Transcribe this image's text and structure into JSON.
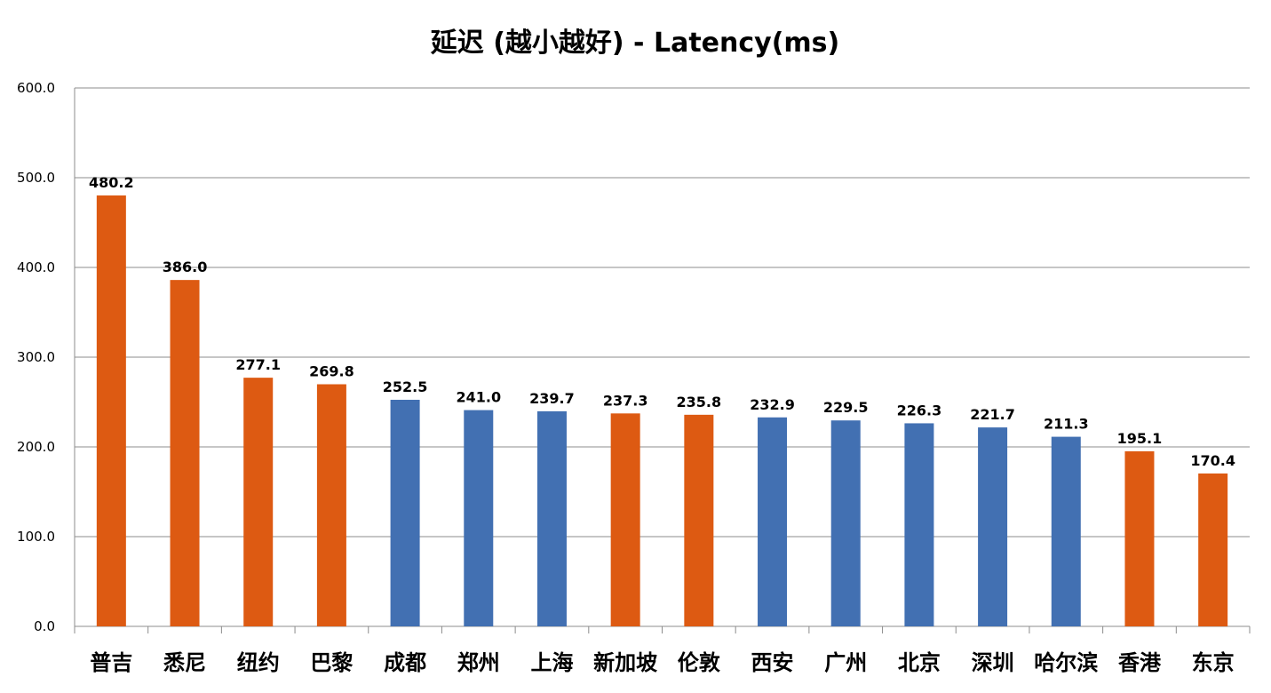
{
  "chart_data": {
    "type": "bar",
    "title": "延迟 (越小越好) -  Latency(ms)",
    "xlabel": "",
    "ylabel": "",
    "ylim": [
      0,
      600
    ],
    "yticks": [
      "0.0",
      "100.0",
      "200.0",
      "300.0",
      "400.0",
      "500.0",
      "600.0"
    ],
    "grid": true,
    "legend": "none",
    "colors": {
      "overseas": "#DD5A12",
      "domestic": "#4270B2"
    },
    "categories": [
      "普吉",
      "悉尼",
      "纽约",
      "巴黎",
      "成都",
      "郑州",
      "上海",
      "新加坡",
      "伦敦",
      "西安",
      "广州",
      "北京",
      "深圳",
      "哈尔滨",
      "香港",
      "东京"
    ],
    "values": [
      480.2,
      386.0,
      277.1,
      269.8,
      252.5,
      241.0,
      239.7,
      237.3,
      235.8,
      232.9,
      229.5,
      226.3,
      221.7,
      211.3,
      195.1,
      170.4
    ],
    "value_labels": [
      "480.2",
      "386.0",
      "277.1",
      "269.8",
      "252.5",
      "241.0",
      "239.7",
      "237.3",
      "235.8",
      "232.9",
      "229.5",
      "226.3",
      "221.7",
      "211.3",
      "195.1",
      "170.4"
    ],
    "bar_groups": [
      "overseas",
      "overseas",
      "overseas",
      "overseas",
      "domestic",
      "domestic",
      "domestic",
      "overseas",
      "overseas",
      "domestic",
      "domestic",
      "domestic",
      "domestic",
      "domestic",
      "overseas",
      "overseas"
    ]
  }
}
